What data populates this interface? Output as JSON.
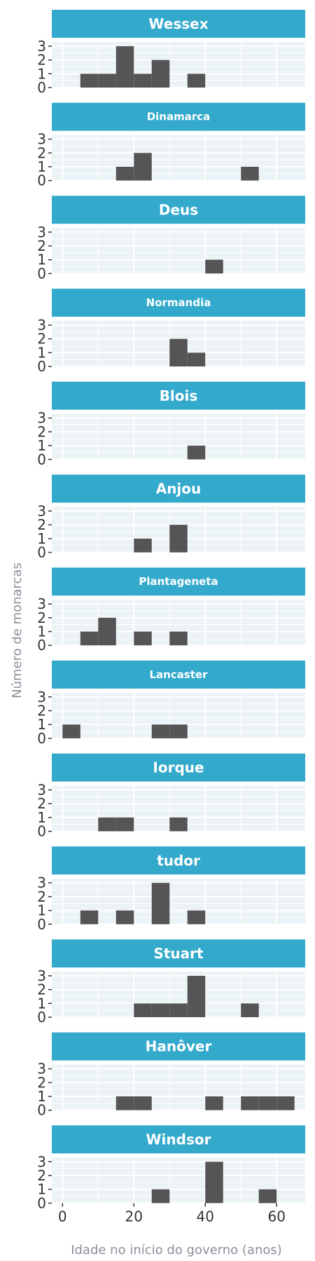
{
  "chart_data": {
    "type": "bar",
    "subtype": "faceted-histogram",
    "xlabel": "Idade no início do governo (anos)",
    "ylabel": "Número de monarcas",
    "xlim": [
      -3,
      68
    ],
    "ylim": [
      0,
      3.3
    ],
    "x_ticks": [
      0,
      20,
      40,
      60
    ],
    "y_ticks": [
      0,
      1,
      2,
      3
    ],
    "bin_width": 5,
    "grid": true,
    "colors": {
      "strip": "#33a9cc",
      "panel": "#ebf3f6",
      "bar": "#555555",
      "gridline": "#ffffff"
    },
    "facets": [
      {
        "name": "Wessex",
        "bins": [
          {
            "x0": 5,
            "x1": 10,
            "count": 1
          },
          {
            "x0": 10,
            "x1": 15,
            "count": 1
          },
          {
            "x0": 15,
            "x1": 20,
            "count": 3
          },
          {
            "x0": 20,
            "x1": 25,
            "count": 1
          },
          {
            "x0": 25,
            "x1": 30,
            "count": 2
          },
          {
            "x0": 35,
            "x1": 40,
            "count": 1
          }
        ]
      },
      {
        "name": "Dinamarca",
        "bins": [
          {
            "x0": 15,
            "x1": 20,
            "count": 1
          },
          {
            "x0": 20,
            "x1": 25,
            "count": 2
          },
          {
            "x0": 50,
            "x1": 55,
            "count": 1
          }
        ]
      },
      {
        "name": "Deus",
        "bins": [
          {
            "x0": 40,
            "x1": 45,
            "count": 1
          }
        ]
      },
      {
        "name": "Normandia",
        "bins": [
          {
            "x0": 30,
            "x1": 35,
            "count": 2
          },
          {
            "x0": 35,
            "x1": 40,
            "count": 1
          }
        ]
      },
      {
        "name": "Blois",
        "bins": [
          {
            "x0": 35,
            "x1": 40,
            "count": 1
          }
        ]
      },
      {
        "name": "Anjou",
        "bins": [
          {
            "x0": 20,
            "x1": 25,
            "count": 1
          },
          {
            "x0": 30,
            "x1": 35,
            "count": 2
          }
        ]
      },
      {
        "name": "Plantageneta",
        "bins": [
          {
            "x0": 5,
            "x1": 10,
            "count": 1
          },
          {
            "x0": 10,
            "x1": 15,
            "count": 2
          },
          {
            "x0": 20,
            "x1": 25,
            "count": 1
          },
          {
            "x0": 30,
            "x1": 35,
            "count": 1
          }
        ]
      },
      {
        "name": "Lancaster",
        "bins": [
          {
            "x0": 0,
            "x1": 5,
            "count": 1
          },
          {
            "x0": 25,
            "x1": 30,
            "count": 1
          },
          {
            "x0": 30,
            "x1": 35,
            "count": 1
          }
        ]
      },
      {
        "name": "Iorque",
        "bins": [
          {
            "x0": 10,
            "x1": 15,
            "count": 1
          },
          {
            "x0": 15,
            "x1": 20,
            "count": 1
          },
          {
            "x0": 30,
            "x1": 35,
            "count": 1
          }
        ]
      },
      {
        "name": "tudor",
        "bins": [
          {
            "x0": 5,
            "x1": 10,
            "count": 1
          },
          {
            "x0": 15,
            "x1": 20,
            "count": 1
          },
          {
            "x0": 25,
            "x1": 30,
            "count": 3
          },
          {
            "x0": 35,
            "x1": 40,
            "count": 1
          }
        ]
      },
      {
        "name": "Stuart",
        "bins": [
          {
            "x0": 20,
            "x1": 25,
            "count": 1
          },
          {
            "x0": 25,
            "x1": 30,
            "count": 1
          },
          {
            "x0": 30,
            "x1": 35,
            "count": 1
          },
          {
            "x0": 35,
            "x1": 40,
            "count": 3
          },
          {
            "x0": 50,
            "x1": 55,
            "count": 1
          }
        ]
      },
      {
        "name": "Hanôver",
        "bins": [
          {
            "x0": 15,
            "x1": 20,
            "count": 1
          },
          {
            "x0": 20,
            "x1": 25,
            "count": 1
          },
          {
            "x0": 40,
            "x1": 45,
            "count": 1
          },
          {
            "x0": 50,
            "x1": 55,
            "count": 1
          },
          {
            "x0": 55,
            "x1": 60,
            "count": 1
          },
          {
            "x0": 60,
            "x1": 65,
            "count": 1
          }
        ]
      },
      {
        "name": "Windsor",
        "bins": [
          {
            "x0": 25,
            "x1": 30,
            "count": 1
          },
          {
            "x0": 40,
            "x1": 45,
            "count": 3
          },
          {
            "x0": 55,
            "x1": 60,
            "count": 1
          }
        ]
      }
    ]
  }
}
